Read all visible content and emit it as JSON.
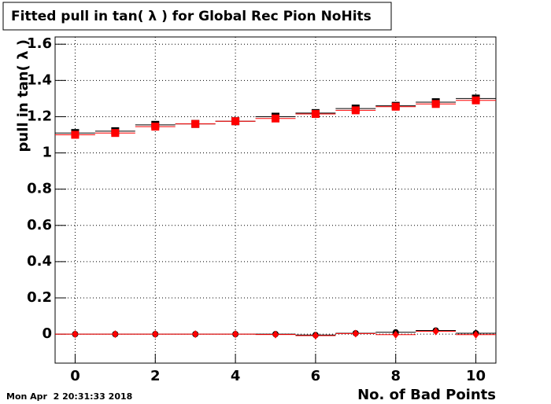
{
  "chart_data": {
    "type": "scatter",
    "title": "Fitted pull in tan( λ ) for Global Rec Pion NoHits",
    "x_label": "No. of Bad Points",
    "y_label": "pull in tan( λ )",
    "timestamp": "Mon Apr  2 20:31:33 2018",
    "x": [
      0,
      1,
      2,
      3,
      4,
      5,
      6,
      7,
      8,
      9,
      10
    ],
    "series": [
      {
        "color": "#000000",
        "marker": "square",
        "values": [
          1.11,
          1.12,
          1.155,
          1.16,
          1.175,
          1.2,
          1.22,
          1.245,
          1.26,
          1.28,
          1.3
        ]
      },
      {
        "color": "#ff0000",
        "marker": "square",
        "values": [
          1.1,
          1.11,
          1.145,
          1.16,
          1.175,
          1.19,
          1.215,
          1.235,
          1.255,
          1.27,
          1.29
        ]
      },
      {
        "color": "#000000",
        "marker": "circle",
        "values": [
          0,
          0,
          0,
          0,
          0,
          0,
          -0.005,
          0.005,
          0.01,
          0.02,
          0.005
        ]
      },
      {
        "color": "#ff0000",
        "marker": "diamond",
        "values": [
          0,
          0,
          0,
          0,
          0,
          -0.002,
          -0.008,
          0.003,
          -0.003,
          0.015,
          -0.003
        ]
      }
    ],
    "xlim": [
      -0.5,
      10.5
    ],
    "xticks": [
      0,
      2,
      4,
      6,
      8,
      10
    ],
    "ylim": [
      -0.16,
      1.64
    ],
    "yticks": [
      0,
      0.2,
      0.4,
      0.6,
      0.8,
      1,
      1.2,
      1.4,
      1.6
    ],
    "grid": true
  }
}
